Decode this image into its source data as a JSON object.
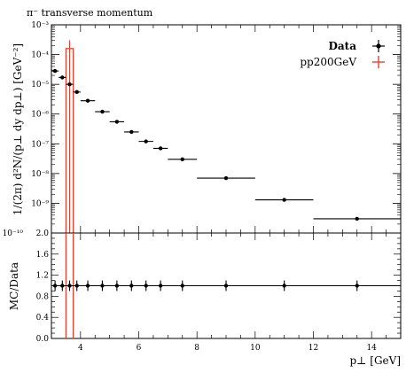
{
  "chart_data": [
    {
      "type": "scatter",
      "panel": "main",
      "title": "π⁻ transverse momentum",
      "ylabel": "1/(2π) d²N/(p⊥ dy dp⊥) [GeV⁻²]",
      "xlabel": "",
      "xlim": [
        3,
        15
      ],
      "ylim": [
        1e-10,
        0.001
      ],
      "yscale": "log",
      "ytick_labels": [
        "10⁻⁹",
        "10⁻⁸",
        "10⁻⁷",
        "10⁻⁶",
        "10⁻⁵",
        "10⁻⁴",
        "10⁻³"
      ],
      "ybottom_label": "10⁻¹⁰",
      "legend_placement": "top-right",
      "series": [
        {
          "name": "Data",
          "color": "#000000",
          "points": [
            {
              "x": 3.125,
              "xlo": 3.0,
              "xhi": 3.25,
              "y": 2.8e-05
            },
            {
              "x": 3.375,
              "xlo": 3.25,
              "xhi": 3.5,
              "y": 1.7e-05
            },
            {
              "x": 3.625,
              "xlo": 3.5,
              "xhi": 3.75,
              "y": 1e-05
            },
            {
              "x": 3.875,
              "xlo": 3.75,
              "xhi": 4.0,
              "y": 5.5e-06
            },
            {
              "x": 4.25,
              "xlo": 4.0,
              "xhi": 4.5,
              "y": 2.8e-06
            },
            {
              "x": 4.75,
              "xlo": 4.5,
              "xhi": 5.0,
              "y": 1.2e-06
            },
            {
              "x": 5.25,
              "xlo": 5.0,
              "xhi": 5.5,
              "y": 5.5e-07
            },
            {
              "x": 5.75,
              "xlo": 5.5,
              "xhi": 6.0,
              "y": 2.5e-07
            },
            {
              "x": 6.25,
              "xlo": 6.0,
              "xhi": 6.5,
              "y": 1.2e-07
            },
            {
              "x": 6.75,
              "xlo": 6.5,
              "xhi": 7.0,
              "y": 7e-08
            },
            {
              "x": 7.5,
              "xlo": 7.0,
              "xhi": 8.0,
              "y": 3e-08
            },
            {
              "x": 9.0,
              "xlo": 8.0,
              "xhi": 10.0,
              "y": 7e-09
            },
            {
              "x": 11.0,
              "xlo": 10.0,
              "xhi": 12.0,
              "y": 1.3e-09
            },
            {
              "x": 13.5,
              "xlo": 12.0,
              "xhi": 15.0,
              "y": 3e-10
            }
          ]
        },
        {
          "name": "pp200GeV",
          "color": "#e8402e",
          "bins": [
            {
              "xlo": 3.5,
              "xhi": 3.75,
              "y": 0.00016,
              "ylo": 1e-10,
              "yhi": 0.0003
            }
          ]
        }
      ]
    },
    {
      "type": "scatter",
      "panel": "ratio",
      "xlabel": "p⊥ [GeV]",
      "ylabel": "MC/Data",
      "xlim": [
        3,
        15
      ],
      "ylim": [
        0.0,
        2.0
      ],
      "xticks": [
        4,
        6,
        8,
        10,
        12,
        14
      ],
      "yticks": [
        0.0,
        0.4,
        0.8,
        1.2,
        1.6,
        2.0
      ],
      "data_ratio": {
        "points": [
          {
            "x": 3.125,
            "xlo": 3.0,
            "xhi": 3.25,
            "y": 1.0,
            "err": 0.1
          },
          {
            "x": 3.375,
            "xlo": 3.25,
            "xhi": 3.5,
            "y": 1.0,
            "err": 0.1
          },
          {
            "x": 3.625,
            "xlo": 3.5,
            "xhi": 3.75,
            "y": 1.0,
            "err": 0.1
          },
          {
            "x": 3.875,
            "xlo": 3.75,
            "xhi": 4.0,
            "y": 1.0,
            "err": 0.1
          },
          {
            "x": 4.25,
            "xlo": 4.0,
            "xhi": 4.5,
            "y": 1.0,
            "err": 0.1
          },
          {
            "x": 4.75,
            "xlo": 4.5,
            "xhi": 5.0,
            "y": 1.0,
            "err": 0.1
          },
          {
            "x": 5.25,
            "xlo": 5.0,
            "xhi": 5.5,
            "y": 1.0,
            "err": 0.1
          },
          {
            "x": 5.75,
            "xlo": 5.5,
            "xhi": 6.0,
            "y": 1.0,
            "err": 0.1
          },
          {
            "x": 6.25,
            "xlo": 6.0,
            "xhi": 6.5,
            "y": 1.0,
            "err": 0.1
          },
          {
            "x": 6.75,
            "xlo": 6.5,
            "xhi": 7.0,
            "y": 1.0,
            "err": 0.1
          },
          {
            "x": 7.5,
            "xlo": 7.0,
            "xhi": 8.0,
            "y": 1.0,
            "err": 0.1
          },
          {
            "x": 9.0,
            "xlo": 8.0,
            "xhi": 10.0,
            "y": 1.0,
            "err": 0.1
          },
          {
            "x": 11.0,
            "xlo": 10.0,
            "xhi": 12.0,
            "y": 1.0,
            "err": 0.1
          },
          {
            "x": 13.5,
            "xlo": 12.0,
            "xhi": 15.0,
            "y": 1.0,
            "err": 0.1
          }
        ]
      },
      "mc_ratio": {
        "bins": [
          {
            "xlo": 3.5,
            "xhi": 3.75,
            "ylo": 0.0,
            "yhi": 2.0
          }
        ]
      }
    }
  ]
}
